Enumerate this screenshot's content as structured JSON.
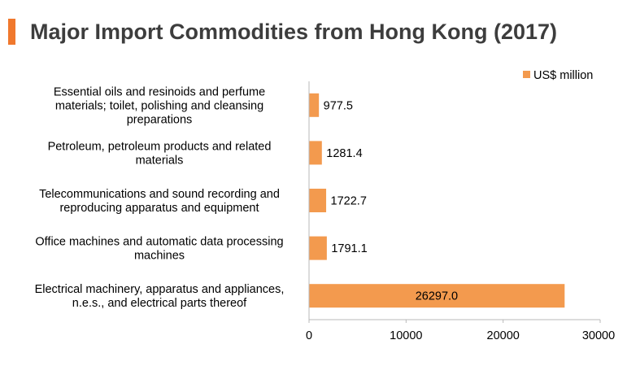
{
  "header": {
    "title": "Major Import Commodities from Hong Kong (2017)"
  },
  "chart_data": {
    "type": "bar",
    "orientation": "horizontal",
    "title": "Major Import Commodities from Hong Kong (2017)",
    "categories": [
      [
        "Essential oils and resinoids and perfume",
        "materials; toilet, polishing and cleansing",
        "preparations"
      ],
      [
        "Petroleum, petroleum products and related",
        "materials"
      ],
      [
        "Telecommunications and sound recording and",
        "reproducing apparatus and equipment"
      ],
      [
        "Office machines and automatic data processing",
        "machines"
      ],
      [
        "Electrical machinery, apparatus and appliances,",
        "n.e.s., and electrical parts thereof"
      ]
    ],
    "series": [
      {
        "name": "US$ million",
        "values": [
          977.5,
          1281.4,
          1722.7,
          1791.1,
          26297.0
        ],
        "value_labels": [
          "977.5",
          "1281.4",
          "1722.7",
          "1791.1",
          "26297.0"
        ]
      }
    ],
    "xlim": [
      0,
      30000
    ],
    "xticks": [
      0,
      10000,
      20000,
      30000
    ],
    "xlabel": "",
    "ylabel": "",
    "grid": false,
    "legend_position": "top-right",
    "colors": {
      "bar": "#f39a4e",
      "axis": "#b8b8b8",
      "accent": "#f0782d"
    }
  }
}
